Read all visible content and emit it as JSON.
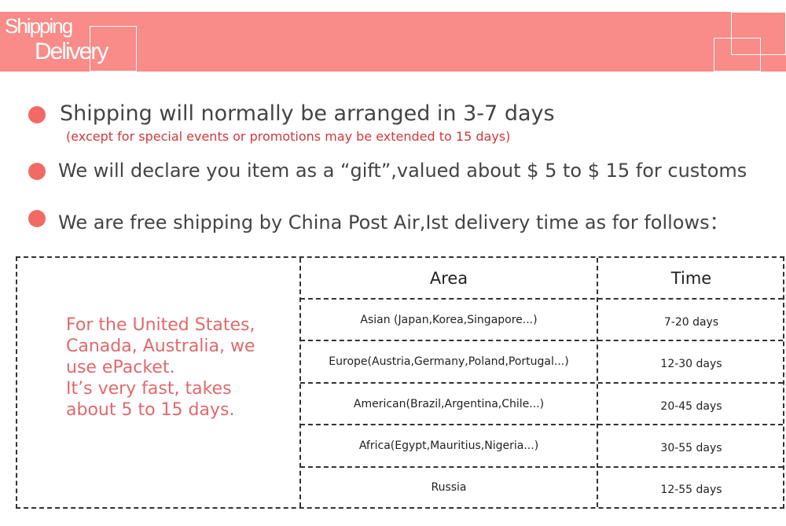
{
  "banner": {
    "title_line1": "Shipping",
    "title_line2": "Delivery",
    "color": "#f98b88"
  },
  "bullets": [
    {
      "text": "Shipping will normally be arranged in 3-7 days",
      "note": "(except for special events or promotions may be extended to 15 days)"
    },
    {
      "text": "We will declare you item as a “gift”,valued about  $ 5 to  $ 15 for customs"
    },
    {
      "text": "We are free shipping by China Post Air,Ist delivery time as for follows："
    }
  ],
  "promo": {
    "lines": [
      "For the United States,",
      "Canada, Australia, we",
      "use ePacket.",
      "It’s very fast, takes",
      "about 5 to 15 days."
    ]
  },
  "table": {
    "headers": [
      "Area",
      "Time"
    ],
    "rows": [
      {
        "area": "Asian (Japan,Korea,Singapore...)",
        "time": "7-20 days"
      },
      {
        "area": "Europe(Austria,Germany,Poland,Portugal...)",
        "time": "12-30 days"
      },
      {
        "area": "American(Brazil,Argentina,Chile...)",
        "time": "20-45 days"
      },
      {
        "area": "Africa(Egypt,Mauritius,Nigeria...)",
        "time": "30-55 days"
      },
      {
        "area": "Russia",
        "time": "12-55 days"
      }
    ]
  }
}
